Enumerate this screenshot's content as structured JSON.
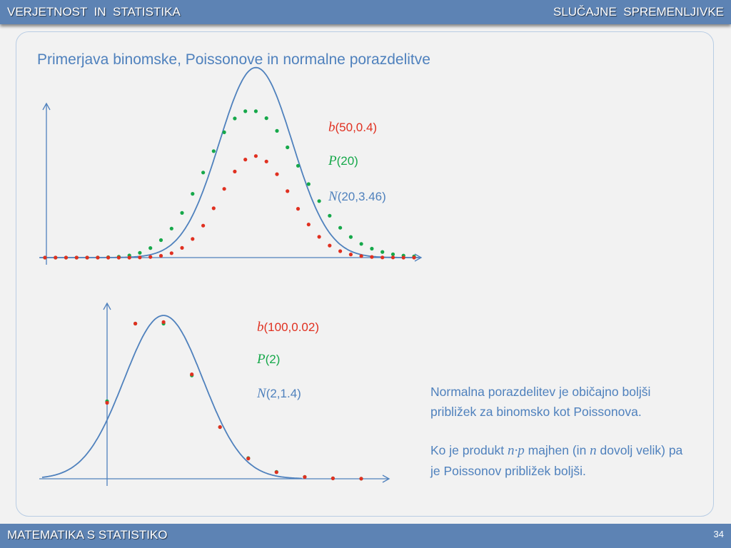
{
  "header": {
    "left": "VERJETNOST  IN  STATISTIKA",
    "right": "SLUČAJNE  SPREMENLJIVKE"
  },
  "title": "Primerjava binomske, Poissonove in normalne porazdelitve",
  "colors": {
    "binomial": "#e03020",
    "poisson": "#16a84a",
    "normal": "#4f81bd",
    "accent": "#5d83b4"
  },
  "chart_data": [
    {
      "type": "scatter",
      "title": "",
      "x": [
        0,
        1,
        2,
        3,
        4,
        5,
        6,
        7,
        8,
        9,
        10,
        11,
        12,
        13,
        14,
        15,
        16,
        17,
        18,
        19,
        20,
        21,
        22,
        23,
        24,
        25,
        26,
        27,
        28,
        29,
        30,
        31,
        32,
        33,
        34,
        35
      ],
      "series": [
        {
          "name": "b(50,0.4)",
          "color_key": "binomial",
          "kind": "points",
          "values": [
            0,
            0,
            0,
            0,
            0,
            0,
            0,
            0,
            0,
            0.0001,
            0.0004,
            0.0011,
            0.0027,
            0.0059,
            0.0113,
            0.0194,
            0.0299,
            0.0417,
            0.0522,
            0.0595,
            0.0616,
            0.0583,
            0.0506,
            0.0403,
            0.0296,
            0.0201,
            0.0126,
            0.0073,
            0.0039,
            0.0019,
            0.0009,
            0.0004,
            0.0001,
            0.0001,
            0,
            0
          ]
        },
        {
          "name": "P(20)",
          "color_key": "poisson",
          "kind": "points",
          "values": [
            0,
            0,
            0,
            0,
            0,
            0.0001,
            0.0002,
            0.0005,
            0.0013,
            0.0029,
            0.0058,
            0.0106,
            0.0176,
            0.0271,
            0.0387,
            0.0516,
            0.0646,
            0.076,
            0.0844,
            0.0888,
            0.0888,
            0.0846,
            0.0769,
            0.0669,
            0.0557,
            0.0446,
            0.0343,
            0.0254,
            0.0181,
            0.0125,
            0.0083,
            0.0054,
            0.0034,
            0.002,
            0.0012,
            0.0007
          ]
        },
        {
          "name": "N(20,3.46)",
          "color_key": "normal",
          "kind": "curve",
          "mean": 20,
          "sd": 3.46
        }
      ],
      "xlim": [
        -0.5,
        35.5
      ],
      "ylim": [
        0,
        0.1
      ],
      "legend": [
        {
          "sym": "b",
          "args": "(50,0.4)",
          "color_key": "binomial"
        },
        {
          "sym": "P",
          "args": "(20)",
          "color_key": "poisson"
        },
        {
          "sym": "N",
          "args": "(20,3.46)",
          "color_key": "normal"
        }
      ]
    },
    {
      "type": "scatter",
      "title": "",
      "x": [
        0,
        1,
        2,
        3,
        4,
        5,
        6,
        7,
        8,
        9
      ],
      "series": [
        {
          "name": "b(100,0.02)",
          "color_key": "binomial",
          "kind": "points",
          "values": [
            0.1326,
            0.2707,
            0.2734,
            0.1823,
            0.0902,
            0.0353,
            0.0114,
            0.0031,
            0.0007,
            0.0002
          ]
        },
        {
          "name": "P(2)",
          "color_key": "poisson",
          "kind": "points",
          "values": [
            0.1353,
            0.2707,
            0.2707,
            0.1804,
            0.0902,
            0.0361,
            0.012,
            0.0034,
            0.0009,
            0.0002
          ]
        },
        {
          "name": "N(2,1.4)",
          "color_key": "normal",
          "kind": "curve",
          "mean": 2,
          "sd": 1.4
        }
      ],
      "xlim": [
        -2.3,
        10
      ],
      "ylim": [
        0,
        0.3
      ],
      "legend": [
        {
          "sym": "b",
          "args": "(100,0.02)",
          "color_key": "binomial"
        },
        {
          "sym": "P",
          "args": "(2)",
          "color_key": "poisson"
        },
        {
          "sym": "N",
          "args": "(2,1.4)",
          "color_key": "normal"
        }
      ]
    }
  ],
  "note": {
    "line1": "Normalna porazdelitev je običajno boljši približek za binomsko kot Poissonova.",
    "p2_before": "Ko je produkt ",
    "p2_math1": "n·p",
    "p2_middle": " majhen (in ",
    "p2_math2": "n",
    "p2_after": " dovolj velik) pa je Poissonov približek boljši."
  },
  "footer": {
    "left": "MATEMATIKA S STATISTIKO",
    "page": "34"
  }
}
